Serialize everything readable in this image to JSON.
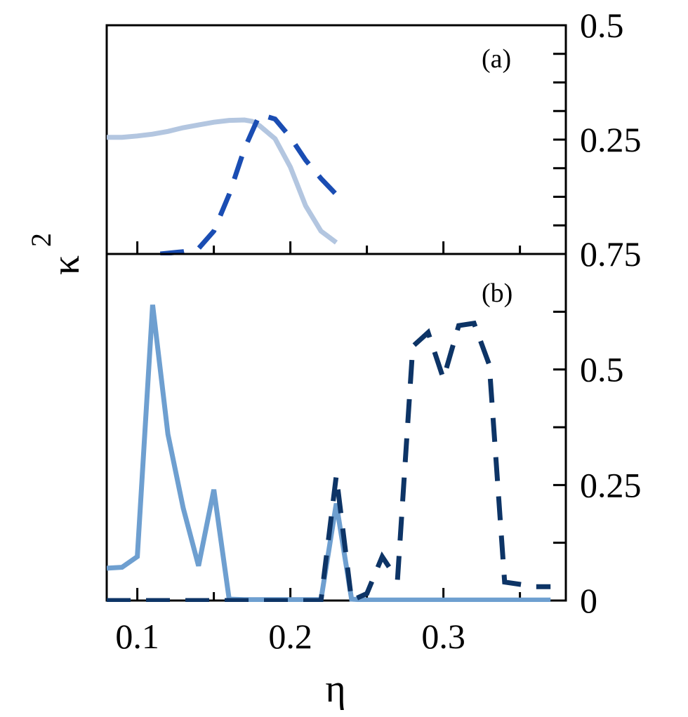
{
  "chart_data": [
    {
      "panel_label": "(a)",
      "type": "line",
      "xlim": [
        0.08,
        0.38
      ],
      "ylim": [
        0,
        0.5
      ],
      "x_ticks": [
        "0.1",
        "0.2",
        "0.3"
      ],
      "y_tick_labels": [
        "0.25",
        "0.5"
      ],
      "grid": false,
      "series": [
        {
          "style": "solid",
          "color": "#b3c6e0",
          "x": [
            0.08,
            0.09,
            0.1,
            0.11,
            0.12,
            0.13,
            0.14,
            0.15,
            0.16,
            0.17,
            0.175,
            0.18,
            0.19,
            0.2,
            0.21,
            0.22,
            0.23
          ],
          "y": [
            0.255,
            0.255,
            0.258,
            0.262,
            0.268,
            0.276,
            0.282,
            0.288,
            0.292,
            0.293,
            0.29,
            0.28,
            0.252,
            0.19,
            0.105,
            0.05,
            0.025
          ]
        },
        {
          "style": "dashed",
          "color": "#1a4db3",
          "x": [
            0.115,
            0.13,
            0.14,
            0.15,
            0.16,
            0.17,
            0.18,
            0.19,
            0.2,
            0.21,
            0.22,
            0.23
          ],
          "y": [
            0.0,
            0.005,
            0.012,
            0.05,
            0.13,
            0.23,
            0.305,
            0.295,
            0.255,
            0.205,
            0.165,
            0.13
          ]
        }
      ]
    },
    {
      "panel_label": "(b)",
      "type": "line",
      "xlim": [
        0.08,
        0.38
      ],
      "ylim": [
        0,
        0.75
      ],
      "x_ticks": [
        "0.1",
        "0.2",
        "0.3"
      ],
      "x_label": "η",
      "y_label": "κ",
      "y_label_superscript": "2",
      "y_tick_labels": [
        "0",
        "0.25",
        "0.5",
        "0.75"
      ],
      "grid": false,
      "series": [
        {
          "style": "solid",
          "color": "#6e9fd0",
          "x": [
            0.08,
            0.09,
            0.1,
            0.11,
            0.12,
            0.13,
            0.14,
            0.15,
            0.16,
            0.17,
            0.18,
            0.19,
            0.2,
            0.21,
            0.22,
            0.23,
            0.24,
            0.25,
            0.26,
            0.27,
            0.28,
            0.29,
            0.3,
            0.31,
            0.32,
            0.33,
            0.34,
            0.35,
            0.36,
            0.37
          ],
          "y": [
            0.07,
            0.072,
            0.095,
            0.64,
            0.36,
            0.2,
            0.075,
            0.24,
            0.003,
            0.002,
            0.002,
            0.002,
            0.002,
            0.002,
            0.002,
            0.21,
            0.003,
            0.001,
            0.001,
            0.001,
            0.001,
            0.001,
            0.001,
            0.001,
            0.001,
            0.001,
            0.001,
            0.001,
            0.001,
            0.001
          ]
        },
        {
          "style": "dashed",
          "color": "#0d3466",
          "x": [
            0.08,
            0.09,
            0.1,
            0.11,
            0.12,
            0.13,
            0.14,
            0.15,
            0.16,
            0.17,
            0.18,
            0.19,
            0.2,
            0.21,
            0.22,
            0.23,
            0.24,
            0.25,
            0.26,
            0.27,
            0.28,
            0.29,
            0.3,
            0.31,
            0.32,
            0.33,
            0.34,
            0.35,
            0.36,
            0.37
          ],
          "y": [
            0.0,
            0.0,
            0.0,
            0.0,
            0.0,
            0.0,
            0.0,
            0.0,
            0.0,
            0.0,
            0.0,
            0.0,
            0.0,
            0.0,
            0.0,
            0.27,
            0.0,
            0.015,
            0.095,
            0.045,
            0.55,
            0.58,
            0.48,
            0.595,
            0.6,
            0.51,
            0.04,
            0.035,
            0.03,
            0.03
          ]
        }
      ]
    }
  ]
}
